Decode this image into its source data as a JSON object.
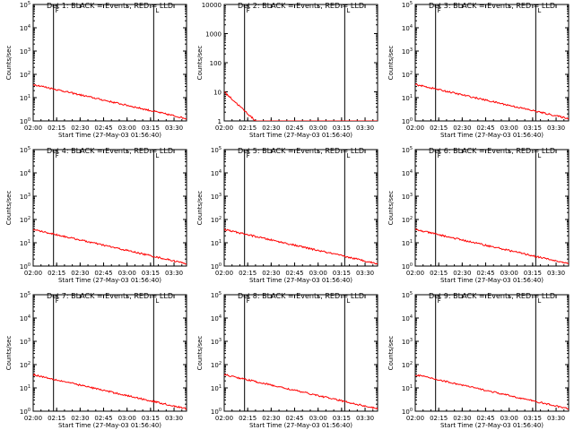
{
  "figure": {
    "background": "#ffffff",
    "axis_color": "#000000",
    "event_color": "#000000",
    "lld_color": "#ff0000"
  },
  "chart_data": [
    {
      "type": "line",
      "title": "Det 1: BLACK = Events, RED = LLD",
      "ylabel": "Counts/sec",
      "xlabel": "Start Time (27-May-03 01:56:40)",
      "yscale": "log",
      "ylim": [
        1,
        100000
      ],
      "xlim": [
        "02:00",
        "03:38"
      ],
      "xticks": [
        "02:00",
        "02:15",
        "02:30",
        "02:45",
        "03:00",
        "03:15",
        "03:30"
      ],
      "yticks": [
        "10^0",
        "10^1",
        "10^2",
        "10^3",
        "10^4",
        "10^5"
      ],
      "markers": [
        "02:13",
        "03:17"
      ],
      "series": [
        {
          "name": "Events",
          "color": "#000000"
        },
        {
          "name": "LLD",
          "color": "#ff0000"
        }
      ]
    },
    {
      "type": "line",
      "title": "Det 2: BLACK = Events, RED = LLD",
      "ylabel": "Counts/sec",
      "xlabel": "Start Time (27-May-03 01:56:40)",
      "yscale": "log",
      "ylim": [
        1,
        10000
      ],
      "xlim": [
        "02:00",
        "03:38"
      ],
      "xticks": [
        "02:00",
        "02:15",
        "02:30",
        "02:45",
        "03:00",
        "03:15",
        "03:30"
      ],
      "yticks": [
        "1",
        "10",
        "100",
        "1000",
        "10000"
      ],
      "markers": [
        "02:13",
        "03:17"
      ],
      "series": [
        {
          "name": "Events",
          "color": "#000000"
        },
        {
          "name": "LLD",
          "color": "#ff0000"
        }
      ]
    },
    {
      "type": "line",
      "title": "Det 3: BLACK = Events, RED = LLD",
      "ylabel": "Counts/sec",
      "xlabel": "Start Time (27-May-03 01:56:40)",
      "yscale": "log",
      "ylim": [
        1,
        100000
      ],
      "xlim": [
        "02:00",
        "03:38"
      ],
      "xticks": [
        "02:00",
        "02:15",
        "02:30",
        "02:45",
        "03:00",
        "03:15",
        "03:30"
      ],
      "yticks": [
        "10^0",
        "10^1",
        "10^2",
        "10^3",
        "10^4",
        "10^5"
      ],
      "markers": [
        "02:13",
        "03:17"
      ],
      "series": [
        {
          "name": "Events",
          "color": "#000000"
        },
        {
          "name": "LLD",
          "color": "#ff0000"
        }
      ]
    },
    {
      "type": "line",
      "title": "Det 4: BLACK = Events, RED = LLD",
      "ylabel": "Counts/sec",
      "xlabel": "Start Time (27-May-03 01:56:40)",
      "yscale": "log",
      "ylim": [
        1,
        100000
      ],
      "xlim": [
        "02:00",
        "03:38"
      ],
      "xticks": [
        "02:00",
        "02:15",
        "02:30",
        "02:45",
        "03:00",
        "03:15",
        "03:30"
      ],
      "yticks": [
        "10^0",
        "10^1",
        "10^2",
        "10^3",
        "10^4",
        "10^5"
      ],
      "markers": [
        "02:13",
        "03:17"
      ],
      "series": [
        {
          "name": "Events",
          "color": "#000000"
        },
        {
          "name": "LLD",
          "color": "#ff0000"
        }
      ]
    },
    {
      "type": "line",
      "title": "Det 5: BLACK = Events, RED = LLD",
      "ylabel": "Counts/sec",
      "xlabel": "Start Time (27-May-03 01:56:40)",
      "yscale": "log",
      "ylim": [
        1,
        100000
      ],
      "xlim": [
        "02:00",
        "03:38"
      ],
      "xticks": [
        "02:00",
        "02:15",
        "02:30",
        "02:45",
        "03:00",
        "03:15",
        "03:30"
      ],
      "yticks": [
        "10^0",
        "10^1",
        "10^2",
        "10^3",
        "10^4",
        "10^5"
      ],
      "markers": [
        "02:13",
        "03:17"
      ],
      "series": [
        {
          "name": "Events",
          "color": "#000000"
        },
        {
          "name": "LLD",
          "color": "#ff0000"
        }
      ]
    },
    {
      "type": "line",
      "title": "Det 6: BLACK = Events, RED = LLD",
      "ylabel": "Counts/sec",
      "xlabel": "Start Time (27-May-03 01:56:40)",
      "yscale": "log",
      "ylim": [
        1,
        100000
      ],
      "xlim": [
        "02:00",
        "03:38"
      ],
      "xticks": [
        "02:00",
        "02:15",
        "02:30",
        "02:45",
        "03:00",
        "03:15",
        "03:30"
      ],
      "yticks": [
        "10^0",
        "10^1",
        "10^2",
        "10^3",
        "10^4",
        "10^5"
      ],
      "markers": [
        "02:13",
        "03:17"
      ],
      "series": [
        {
          "name": "Events",
          "color": "#000000"
        },
        {
          "name": "LLD",
          "color": "#ff0000"
        }
      ]
    },
    {
      "type": "line",
      "title": "Det 7: BLACK = Events, RED = LLD",
      "ylabel": "Counts/sec",
      "xlabel": "Start Time (27-May-03 01:56:40)",
      "yscale": "log",
      "ylim": [
        1,
        100000
      ],
      "xlim": [
        "02:00",
        "03:38"
      ],
      "xticks": [
        "02:00",
        "02:15",
        "02:30",
        "02:45",
        "03:00",
        "03:15",
        "03:30"
      ],
      "yticks": [
        "10^0",
        "10^1",
        "10^2",
        "10^3",
        "10^4",
        "10^5"
      ],
      "markers": [
        "02:13",
        "03:17"
      ],
      "series": [
        {
          "name": "Events",
          "color": "#000000"
        },
        {
          "name": "LLD",
          "color": "#ff0000"
        }
      ]
    },
    {
      "type": "line",
      "title": "Det 8: BLACK = Events, RED = LLD",
      "ylabel": "Counts/sec",
      "xlabel": "Start Time (27-May-03 01:56:40)",
      "yscale": "log",
      "ylim": [
        1,
        100000
      ],
      "xlim": [
        "02:00",
        "03:38"
      ],
      "xticks": [
        "02:00",
        "02:15",
        "02:30",
        "02:45",
        "03:00",
        "03:15",
        "03:30"
      ],
      "yticks": [
        "10^0",
        "10^1",
        "10^2",
        "10^3",
        "10^4",
        "10^5"
      ],
      "markers": [
        "02:13",
        "03:17"
      ],
      "series": [
        {
          "name": "Events",
          "color": "#000000"
        },
        {
          "name": "LLD",
          "color": "#ff0000"
        }
      ]
    },
    {
      "type": "line",
      "title": "Det 9: BLACK = Events, RED = LLD",
      "ylabel": "Counts/sec",
      "xlabel": "Start Time (27-May-03 01:56:40)",
      "yscale": "log",
      "ylim": [
        1,
        100000
      ],
      "xlim": [
        "02:00",
        "03:38"
      ],
      "xticks": [
        "02:00",
        "02:15",
        "02:30",
        "02:45",
        "03:00",
        "03:15",
        "03:30"
      ],
      "yticks": [
        "10^0",
        "10^1",
        "10^2",
        "10^3",
        "10^4",
        "10^5"
      ],
      "markers": [
        "02:13",
        "03:17"
      ],
      "series": [
        {
          "name": "Events",
          "color": "#000000"
        },
        {
          "name": "LLD",
          "color": "#ff0000"
        }
      ]
    }
  ]
}
